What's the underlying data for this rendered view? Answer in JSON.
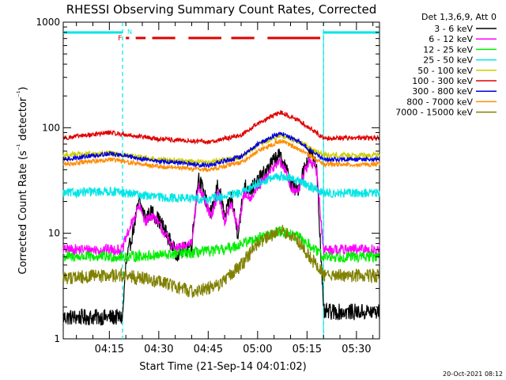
{
  "chart_data": {
    "type": "line",
    "title": "RHESSI Observing Summary Count Rates, Corrected",
    "xlabel": "Start Time (21-Sep-14 04:01:02)",
    "ylabel": "Corrected Count Rate (s⁻¹ detector⁻¹)",
    "yscale": "log",
    "ylim": [
      1,
      1000
    ],
    "xlim": [
      "04:01",
      "05:37"
    ],
    "x_ticks": [
      "04:15",
      "04:30",
      "04:45",
      "05:00",
      "05:15",
      "05:30"
    ],
    "y_ticks": [
      "1",
      "10",
      "100",
      "1000"
    ],
    "legend_title": "Det 1,3,6,9, Att 0",
    "legend_position": "right",
    "footer_date": "20-Oct-2021 08:12",
    "flags": {
      "night_label": "N",
      "flare_label": "F",
      "night_color": "#00e5e5",
      "flare_color": "#e00000",
      "night_intervals": [
        [
          "04:01",
          "04:19"
        ],
        [
          "05:20",
          "05:37"
        ]
      ],
      "flare_segments": [
        [
          "04:20",
          "04:21"
        ],
        [
          "04:23",
          "04:26"
        ],
        [
          "04:28",
          "04:35"
        ],
        [
          "04:39",
          "04:49"
        ],
        [
          "04:52",
          "04:59"
        ],
        [
          "05:03",
          "05:19"
        ]
      ],
      "eclipse_lines": [
        "04:19",
        "05:20"
      ]
    },
    "series": [
      {
        "name": "3 - 6 keV",
        "color": "#000000",
        "x": [
          "04:01",
          "04:19",
          "04:20",
          "04:24",
          "04:26",
          "04:28",
          "04:31",
          "04:33",
          "04:35",
          "04:38",
          "04:40",
          "04:42",
          "04:44",
          "04:46",
          "04:48",
          "04:50",
          "04:52",
          "04:54",
          "04:56",
          "04:58",
          "05:00",
          "05:03",
          "05:06",
          "05:08",
          "05:10",
          "05:12",
          "05:14",
          "05:16",
          "05:18",
          "05:20",
          "05:37"
        ],
        "y": [
          1.6,
          1.6,
          5,
          20,
          14,
          16,
          12,
          9,
          6.5,
          7,
          8,
          35,
          22,
          15,
          30,
          14,
          22,
          10,
          28,
          26,
          31,
          40,
          55,
          48,
          30,
          25,
          40,
          58,
          42,
          1.8,
          1.8
        ]
      },
      {
        "name": "6 - 12 keV",
        "color": "#ff00ff",
        "x": [
          "04:01",
          "04:19",
          "04:20",
          "04:24",
          "04:26",
          "04:28",
          "04:31",
          "04:33",
          "04:35",
          "04:38",
          "04:40",
          "04:42",
          "04:44",
          "04:46",
          "04:48",
          "04:50",
          "04:52",
          "04:54",
          "04:56",
          "04:58",
          "05:00",
          "05:03",
          "05:06",
          "05:08",
          "05:10",
          "05:12",
          "05:14",
          "05:16",
          "05:18",
          "05:20",
          "05:37"
        ],
        "y": [
          7,
          7,
          9,
          18,
          13,
          15,
          11,
          8.5,
          7,
          7.5,
          8.5,
          28,
          20,
          14,
          25,
          13,
          19,
          11,
          24,
          22,
          27,
          35,
          48,
          42,
          28,
          24,
          36,
          50,
          38,
          7,
          7
        ]
      },
      {
        "name": "12 - 25 keV",
        "color": "#00ee00",
        "x": [
          "04:01",
          "04:19",
          "04:30",
          "04:40",
          "04:50",
          "05:00",
          "05:07",
          "05:13",
          "05:20",
          "05:37"
        ],
        "y": [
          6,
          6,
          6.2,
          6.5,
          7,
          9,
          10.5,
          9,
          6,
          6
        ]
      },
      {
        "name": "25 - 50 keV",
        "color": "#00e5e5",
        "x": [
          "04:01",
          "04:15",
          "04:30",
          "04:45",
          "04:55",
          "05:00",
          "05:07",
          "05:13",
          "05:20",
          "05:37"
        ],
        "y": [
          24,
          25,
          22,
          21,
          24,
          30,
          35,
          31,
          24,
          24
        ]
      },
      {
        "name": "50 - 100 keV",
        "color": "#cccc00",
        "x": [
          "04:01",
          "04:15",
          "04:30",
          "04:45",
          "04:55",
          "05:00",
          "05:07",
          "05:13",
          "05:20",
          "05:37"
        ],
        "y": [
          55,
          57,
          50,
          47,
          53,
          68,
          85,
          72,
          55,
          55
        ]
      },
      {
        "name": "100 - 300 keV",
        "color": "#e00000",
        "x": [
          "04:01",
          "04:15",
          "04:30",
          "04:45",
          "04:55",
          "05:00",
          "05:07",
          "05:13",
          "05:20",
          "05:37"
        ],
        "y": [
          80,
          90,
          78,
          73,
          85,
          110,
          140,
          115,
          80,
          80
        ]
      },
      {
        "name": "300 - 800 keV",
        "color": "#0000dd",
        "x": [
          "04:01",
          "04:15",
          "04:30",
          "04:45",
          "04:55",
          "05:00",
          "05:07",
          "05:13",
          "05:20",
          "05:37"
        ],
        "y": [
          50,
          57,
          48,
          44,
          53,
          70,
          90,
          72,
          50,
          50
        ]
      },
      {
        "name": "800 - 7000 keV",
        "color": "#ff8c00",
        "x": [
          "04:01",
          "04:15",
          "04:30",
          "04:45",
          "04:55",
          "05:00",
          "05:07",
          "05:13",
          "05:20",
          "05:37"
        ],
        "y": [
          45,
          50,
          43,
          40,
          47,
          60,
          75,
          62,
          45,
          45
        ]
      },
      {
        "name": "7000 - 15000 keV",
        "color": "#808000",
        "x": [
          "04:01",
          "04:19",
          "04:30",
          "04:40",
          "04:48",
          "04:55",
          "05:00",
          "05:07",
          "05:13",
          "05:20",
          "05:37"
        ],
        "y": [
          3.8,
          4,
          3.5,
          2.8,
          3.2,
          5,
          8,
          11,
          8,
          4,
          4
        ]
      }
    ]
  }
}
